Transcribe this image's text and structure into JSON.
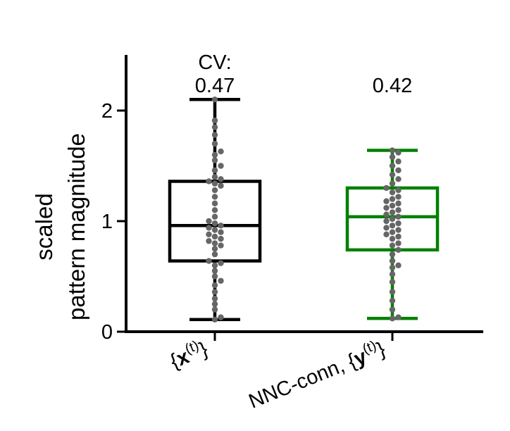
{
  "chart_data": {
    "type": "box",
    "ylabel_lines": [
      "scaled",
      "pattern magnitude"
    ],
    "ylim": [
      0,
      2.5
    ],
    "yticks": [
      "0",
      "1",
      "2"
    ],
    "categories": [
      {
        "math_prefix": "",
        "math_letter": "x",
        "math_sup": "(t)"
      },
      {
        "math_prefix": "NNC-conn, ",
        "math_letter": "y",
        "math_sup": "(t)"
      }
    ],
    "cv_label": "CV:",
    "series": [
      {
        "color": "#000000",
        "point_color": "#666666",
        "cv": "0.47",
        "whisker_low": 0.11,
        "q1": 0.64,
        "median": 0.96,
        "q3": 1.36,
        "whisker_high": 2.1,
        "points": [
          0.11,
          0.13,
          0.2,
          0.25,
          0.3,
          0.36,
          0.42,
          0.46,
          0.5,
          0.55,
          0.6,
          0.62,
          0.64,
          0.7,
          0.75,
          0.78,
          0.8,
          0.82,
          0.84,
          0.86,
          0.88,
          0.9,
          0.92,
          0.94,
          0.96,
          0.98,
          1.0,
          1.04,
          1.1,
          1.16,
          1.22,
          1.28,
          1.32,
          1.34,
          1.36,
          1.38,
          1.4,
          1.46,
          1.5,
          1.55,
          1.6,
          1.63,
          1.7,
          1.78,
          1.85,
          1.91,
          2.1
        ]
      },
      {
        "color": "#008000",
        "point_color": "#666666",
        "cv": "0.42",
        "whisker_low": 0.12,
        "q1": 0.74,
        "median": 1.04,
        "q3": 1.3,
        "whisker_high": 1.64,
        "points": [
          0.12,
          0.13,
          0.2,
          0.28,
          0.36,
          0.45,
          0.52,
          0.58,
          0.6,
          0.64,
          0.7,
          0.74,
          0.78,
          0.8,
          0.84,
          0.86,
          0.88,
          0.9,
          0.92,
          0.94,
          0.96,
          0.98,
          1.0,
          1.02,
          1.04,
          1.06,
          1.08,
          1.1,
          1.12,
          1.14,
          1.16,
          1.18,
          1.2,
          1.22,
          1.26,
          1.28,
          1.3,
          1.34,
          1.38,
          1.42,
          1.46,
          1.5,
          1.54,
          1.58,
          1.62,
          1.64
        ]
      }
    ]
  }
}
